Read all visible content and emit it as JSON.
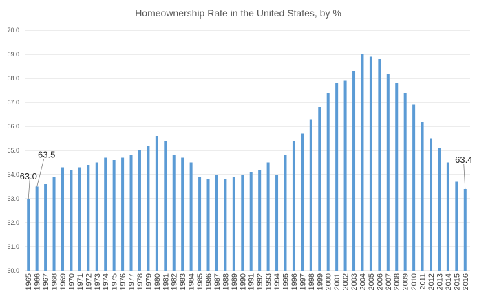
{
  "chart_data": {
    "type": "bar",
    "title": "Homeownership Rate in the United States, by %",
    "xlabel": "",
    "ylabel": "",
    "ylim": [
      60.0,
      70.0
    ],
    "yticks": [
      "60.0",
      "61.0",
      "62.0",
      "63.0",
      "64.0",
      "65.0",
      "66.0",
      "67.0",
      "68.0",
      "69.0",
      "70.0"
    ],
    "grid": true,
    "categories": [
      "1965",
      "1966",
      "1967",
      "1968",
      "1969",
      "1970",
      "1971",
      "1972",
      "1973",
      "1974",
      "1975",
      "1976",
      "1977",
      "1978",
      "1979",
      "1980",
      "1981",
      "1982",
      "1983",
      "1984",
      "1985",
      "1986",
      "1987",
      "1988",
      "1989",
      "1990",
      "1991",
      "1992",
      "1993",
      "1994",
      "1995",
      "1996",
      "1997",
      "1998",
      "1999",
      "2000",
      "2001",
      "2002",
      "2003",
      "2004",
      "2005",
      "2006",
      "2007",
      "2008",
      "2009",
      "2010",
      "2011",
      "2012",
      "2013",
      "2014",
      "2015",
      "2016"
    ],
    "values": [
      63.0,
      63.5,
      63.6,
      63.9,
      64.3,
      64.2,
      64.3,
      64.4,
      64.5,
      64.7,
      64.6,
      64.7,
      64.8,
      65.0,
      65.2,
      65.6,
      65.4,
      64.8,
      64.7,
      64.5,
      63.9,
      63.8,
      64.0,
      63.8,
      63.9,
      64.0,
      64.1,
      64.2,
      64.5,
      64.0,
      64.8,
      65.4,
      65.7,
      66.3,
      66.8,
      67.4,
      67.8,
      67.9,
      68.3,
      69.0,
      68.9,
      68.8,
      68.2,
      67.8,
      67.4,
      66.9,
      66.2,
      65.5,
      65.1,
      64.5,
      63.7,
      63.4
    ],
    "annotations": [
      {
        "category": "1965",
        "label": "63.0"
      },
      {
        "category": "1966",
        "label": "63.5"
      },
      {
        "category": "2016",
        "label": "63.4"
      }
    ]
  }
}
